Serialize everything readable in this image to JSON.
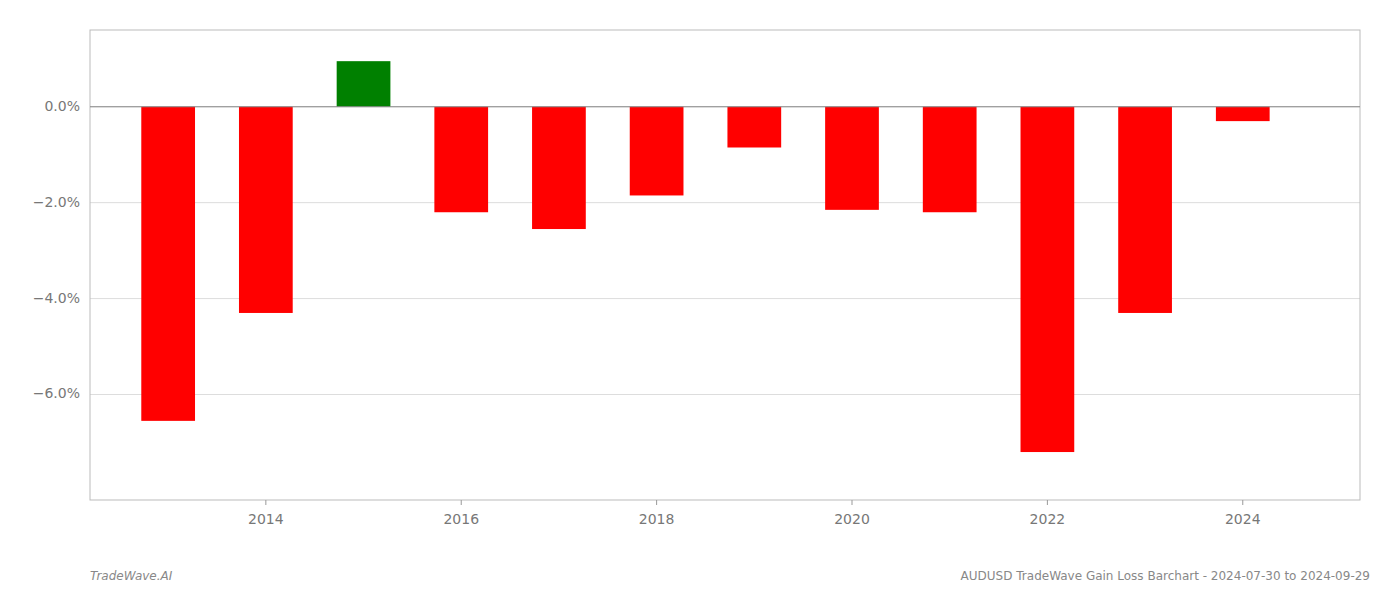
{
  "chart_data": {
    "type": "bar",
    "x": [
      2013,
      2014,
      2015,
      2016,
      2017,
      2018,
      2019,
      2020,
      2021,
      2022,
      2023,
      2024
    ],
    "values": [
      -6.55,
      -4.3,
      0.95,
      -2.2,
      -2.55,
      -1.85,
      -0.85,
      -2.15,
      -2.2,
      -7.2,
      -4.3,
      -0.3
    ],
    "colors": [
      "#ff0000",
      "#ff0000",
      "#008000",
      "#ff0000",
      "#ff0000",
      "#ff0000",
      "#ff0000",
      "#ff0000",
      "#ff0000",
      "#ff0000",
      "#ff0000",
      "#ff0000"
    ],
    "xlim": [
      2012.2,
      2025.2
    ],
    "xticks": [
      2014,
      2016,
      2018,
      2020,
      2022,
      2024
    ],
    "ylim": [
      -8.2,
      1.6
    ],
    "yticks": [
      {
        "value": 0.0,
        "label": "0.0%"
      },
      {
        "value": -2.0,
        "label": "−2.0%"
      },
      {
        "value": -4.0,
        "label": "−4.0%"
      },
      {
        "value": -6.0,
        "label": "−6.0%"
      }
    ],
    "grid": true,
    "annotations": [
      "TradeWave.AI",
      "AUDUSD TradeWave Gain Loss Barchart - 2024-07-30 to 2024-09-29"
    ]
  }
}
